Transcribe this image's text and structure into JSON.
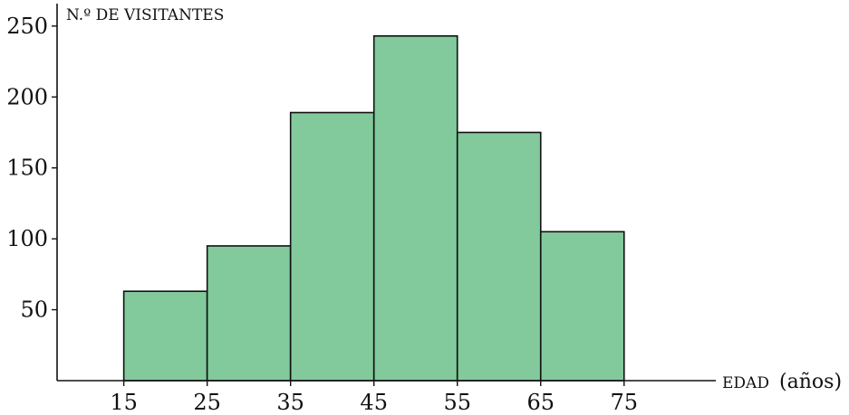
{
  "chart_data": {
    "type": "bar",
    "subtype": "histogram",
    "bins": [
      [
        15,
        25
      ],
      [
        25,
        35
      ],
      [
        35,
        45
      ],
      [
        45,
        55
      ],
      [
        55,
        65
      ],
      [
        65,
        75
      ]
    ],
    "values": [
      63,
      95,
      189,
      243,
      175,
      105
    ],
    "x_ticks": [
      15,
      25,
      35,
      45,
      55,
      65,
      75
    ],
    "y_ticks": [
      50,
      100,
      150,
      200,
      250
    ],
    "xlim": [
      7,
      86
    ],
    "ylim": [
      0,
      262
    ],
    "ylabel": "N.º DE VISITANTES",
    "xlabel_main": "EDAD",
    "xlabel_unit": "(años)",
    "grid": false,
    "legend": "none",
    "colors": {
      "bar_fill": "#82CA9C",
      "bar_stroke": "#111111",
      "axis": "#111111"
    }
  }
}
